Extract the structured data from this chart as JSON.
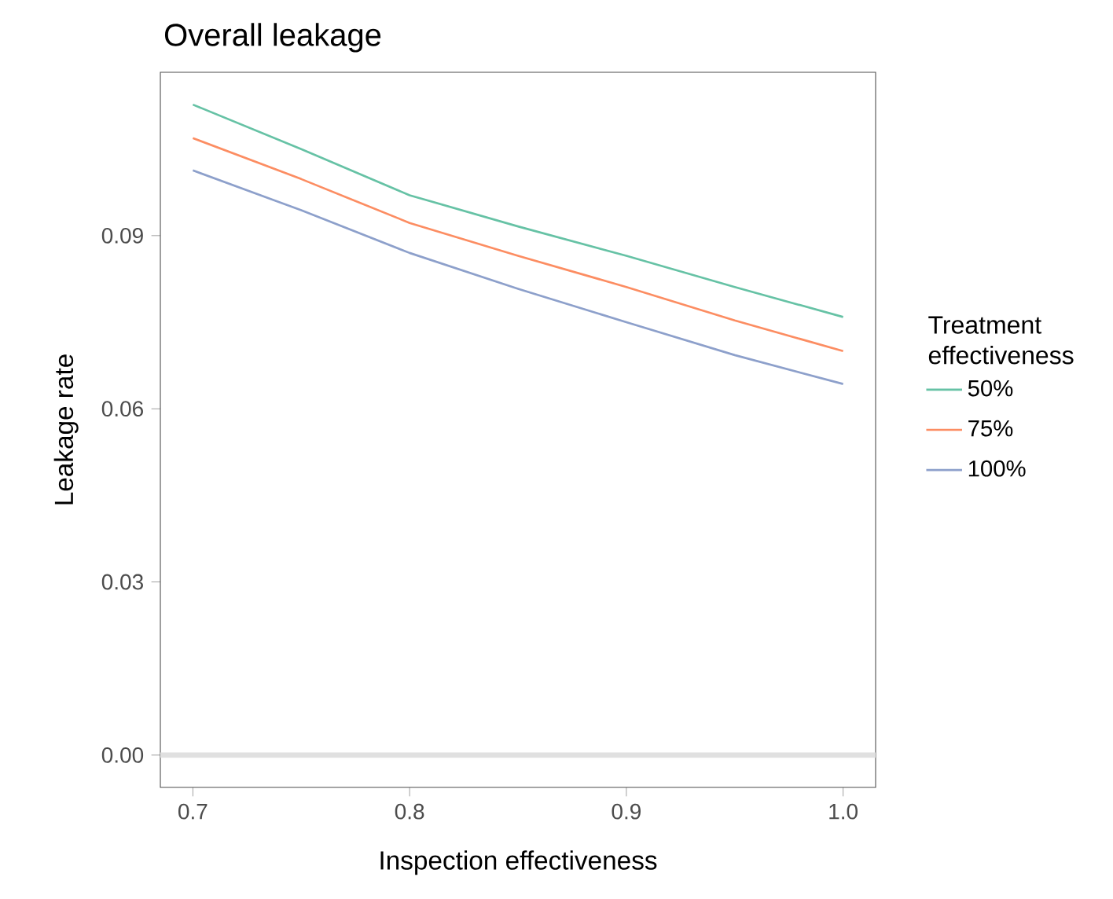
{
  "chart_data": {
    "type": "line",
    "title": "Overall leakage",
    "xlabel": "Inspection effectiveness",
    "ylabel": "Leakage rate",
    "legend_title": "Treatment effectiveness",
    "x": [
      0.7,
      0.75,
      0.8,
      0.85,
      0.9,
      0.95,
      1.0
    ],
    "series": [
      {
        "name": "50%",
        "color": "#66c2a5",
        "values": [
          0.1127,
          0.105,
          0.097,
          0.0916,
          0.0865,
          0.0811,
          0.0759
        ]
      },
      {
        "name": "75%",
        "color": "#fc8d62",
        "values": [
          0.1069,
          0.0998,
          0.0922,
          0.0865,
          0.0811,
          0.0753,
          0.07
        ]
      },
      {
        "name": "100%",
        "color": "#8da0cb",
        "values": [
          0.1013,
          0.0944,
          0.087,
          0.0808,
          0.075,
          0.0693,
          0.0643
        ]
      }
    ],
    "xlim": [
      0.685,
      1.015
    ],
    "ylim": [
      -0.0056,
      0.1183
    ],
    "xticks": [
      {
        "value": 0.7,
        "label": "0.7"
      },
      {
        "value": 0.8,
        "label": "0.8"
      },
      {
        "value": 0.9,
        "label": "0.9"
      },
      {
        "value": 1.0,
        "label": "1.0"
      }
    ],
    "yticks": [
      {
        "value": 0.0,
        "label": "0.00"
      },
      {
        "value": 0.03,
        "label": "0.03"
      },
      {
        "value": 0.06,
        "label": "0.06"
      },
      {
        "value": 0.09,
        "label": "0.09"
      }
    ],
    "ref_lines": [
      {
        "axis": "y",
        "value": 0,
        "color": "#e0e0e0"
      }
    ],
    "grid": false,
    "legend": "right",
    "marker": "none",
    "line_style": "solid"
  }
}
